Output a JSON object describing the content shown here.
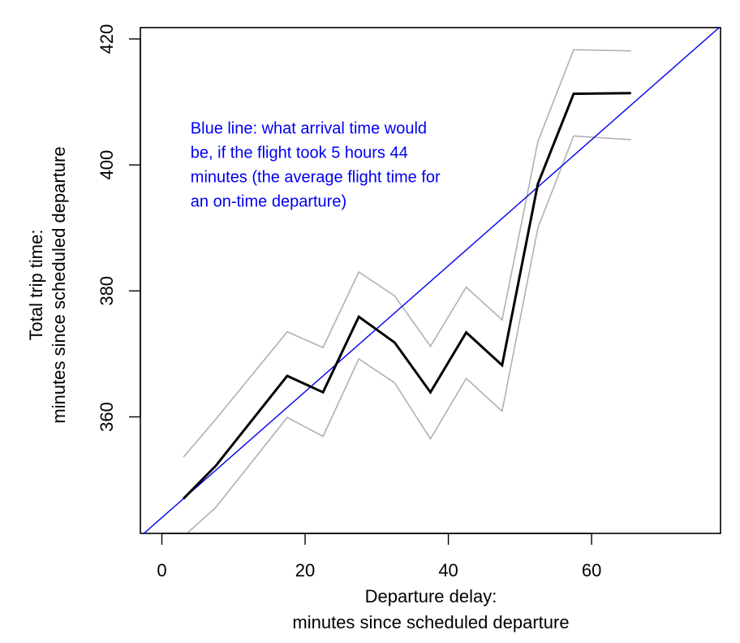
{
  "chart_data": {
    "type": "line",
    "xlabel_lines": [
      "Departure delay:",
      "minutes since scheduled departure"
    ],
    "ylabel_lines": [
      "Total trip time:",
      "minutes since scheduled departure"
    ],
    "xlim": [
      -3,
      78
    ],
    "ylim": [
      341.5,
      421.8
    ],
    "xticks": [
      0,
      20,
      40,
      60
    ],
    "yticks": [
      360,
      380,
      400,
      420
    ],
    "grid": false,
    "annotation_lines": [
      "Blue line:  what arrival time would",
      "be, if the flight took 5 hours 44",
      "minutes (the average flight time for",
      "an on-time departure)"
    ],
    "annotation_anchor": [
      4,
      405
    ],
    "colors": {
      "mean": "#000000",
      "band": "#b0b0b0",
      "reference": "#0000ee",
      "annotation": "#0000ee"
    },
    "series": [
      {
        "role": "mean",
        "x": [
          3,
          7.5,
          17.5,
          22.5,
          27.5,
          32.5,
          37.5,
          42.5,
          47.5,
          52.5,
          57.5,
          65.5
        ],
        "y": [
          347,
          352.2,
          366.5,
          363.9,
          375.9,
          371.8,
          363.9,
          373.4,
          368.2,
          397,
          411.3,
          411.4
        ]
      },
      {
        "role": "upper",
        "x": [
          3,
          7.5,
          17.5,
          22.5,
          27.5,
          32.5,
          37.5,
          42.5,
          47.5,
          52.5,
          57.5,
          65.5
        ],
        "y": [
          353.6,
          359.6,
          373.5,
          371,
          383,
          379.2,
          371.2,
          380.6,
          375.4,
          403.7,
          418.3,
          418.1
        ]
      },
      {
        "role": "lower",
        "x": [
          3.5,
          7.5,
          17.5,
          22.5,
          27.5,
          32.5,
          37.5,
          42.5,
          47.5,
          52.5,
          57.5,
          65.5
        ],
        "y": [
          341.5,
          345.6,
          359.9,
          356.9,
          369.2,
          365.4,
          356.5,
          366.1,
          360.9,
          390,
          404.6,
          404
        ]
      },
      {
        "role": "reference",
        "intercept": 344,
        "slope": 1
      }
    ]
  }
}
